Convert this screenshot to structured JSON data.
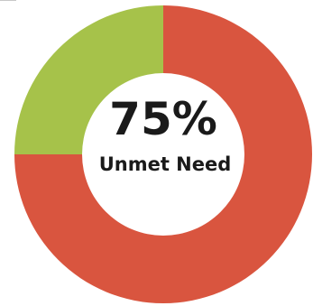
{
  "chart_data": {
    "type": "pie",
    "variant": "donut",
    "center_value": "75%",
    "center_label": "Unmet Need",
    "slices": [
      {
        "value": 75,
        "color": "#d9553f"
      },
      {
        "value": 25,
        "color": "#a6c24a"
      }
    ],
    "start_angle": 0,
    "direction": "clockwise"
  }
}
